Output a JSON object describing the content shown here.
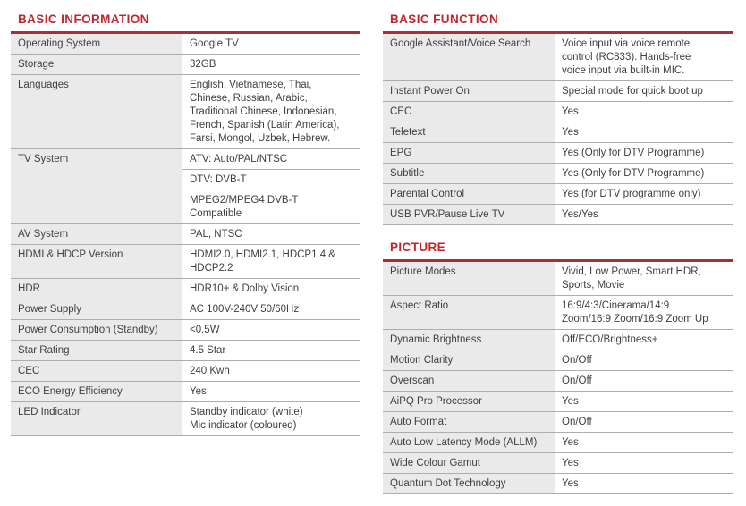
{
  "theme": {
    "heading_color": "#c1262d",
    "rule_color": "#a23237",
    "label_background": "#eaeaea",
    "divider_color": "#adadad",
    "text_color": "#3f3f3f"
  },
  "sections": [
    {
      "title": "BASIC INFORMATION",
      "rows": [
        {
          "label": "Operating System",
          "values": [
            "Google TV"
          ]
        },
        {
          "label": "Storage",
          "values": [
            "32GB"
          ]
        },
        {
          "label": "Languages",
          "values": [
            "English, Vietnamese, Thai,\nChinese, Russian, Arabic,\nTraditional Chinese, Indonesian,\nFrench, Spanish (Latin America),\nFarsi, Mongol, Uzbek, Hebrew."
          ]
        },
        {
          "label": "TV System",
          "values": [
            "ATV: Auto/PAL/NTSC",
            "DTV: DVB-T",
            "MPEG2/MPEG4 DVB-T\nCompatible"
          ]
        },
        {
          "label": "AV System",
          "values": [
            "PAL, NTSC"
          ]
        },
        {
          "label": "HDMI & HDCP Version",
          "values": [
            "HDMI2.0, HDMI2.1, HDCP1.4 &\nHDCP2.2"
          ]
        },
        {
          "label": "HDR",
          "values": [
            "HDR10+ & Dolby Vision"
          ]
        },
        {
          "label": "Power Supply",
          "values": [
            "AC 100V-240V 50/60Hz"
          ]
        },
        {
          "label": "Power Consumption (Standby)",
          "values": [
            "<0.5W"
          ]
        },
        {
          "label": "Star Rating",
          "values": [
            "4.5 Star"
          ]
        },
        {
          "label": "CEC",
          "values": [
            "240 Kwh"
          ]
        },
        {
          "label": "ECO Energy Efficiency",
          "values": [
            "Yes"
          ]
        },
        {
          "label": "LED Indicator",
          "values": [
            "Standby indicator (white)\nMic indicator (coloured)"
          ]
        }
      ]
    },
    {
      "title": "BASIC FUNCTION",
      "rows": [
        {
          "label": "Google Assistant/Voice Search",
          "values": [
            "Voice input via voice remote\ncontrol (RC833). Hands-free\nvoice input via built-in MIC."
          ]
        },
        {
          "label": "Instant Power On",
          "values": [
            "Special mode for quick boot up"
          ]
        },
        {
          "label": "CEC",
          "values": [
            "Yes"
          ]
        },
        {
          "label": "Teletext",
          "values": [
            "Yes"
          ]
        },
        {
          "label": "EPG",
          "values": [
            "Yes (Only for DTV Programme)"
          ]
        },
        {
          "label": "Subtitle",
          "values": [
            "Yes (Only for DTV Programme)"
          ]
        },
        {
          "label": "Parental Control",
          "values": [
            "Yes (for DTV programme only)"
          ]
        },
        {
          "label": "USB PVR/Pause Live TV",
          "values": [
            "Yes/Yes"
          ]
        }
      ]
    },
    {
      "title": "PICTURE",
      "rows": [
        {
          "label": "Picture Modes",
          "values": [
            "Vivid, Low Power, Smart HDR,\nSports, Movie"
          ]
        },
        {
          "label": "Aspect Ratio",
          "values": [
            "16:9/4:3/Cinerama/14:9\nZoom/16:9 Zoom/16:9 Zoom Up"
          ]
        },
        {
          "label": "Dynamic Brightness",
          "values": [
            "Off/ECO/Brightness+"
          ]
        },
        {
          "label": "Motion Clarity",
          "values": [
            "On/Off"
          ]
        },
        {
          "label": "Overscan",
          "values": [
            "On/Off"
          ]
        },
        {
          "label": "AiPQ Pro Processor",
          "values": [
            "Yes"
          ]
        },
        {
          "label": "Auto Format",
          "values": [
            "On/Off"
          ]
        },
        {
          "label": "Auto Low Latency Mode (ALLM)",
          "values": [
            "Yes"
          ]
        },
        {
          "label": "Wide Colour Gamut",
          "values": [
            "Yes"
          ]
        },
        {
          "label": "Quantum Dot Technology",
          "values": [
            "Yes"
          ]
        }
      ]
    }
  ]
}
